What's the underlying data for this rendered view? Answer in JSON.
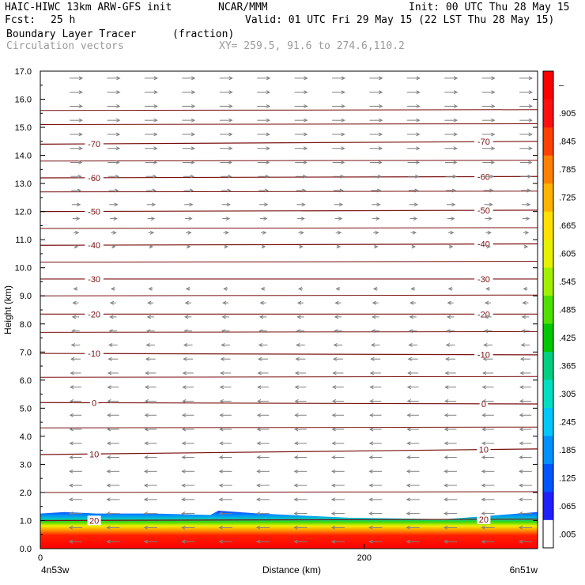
{
  "header": {
    "line1_left": "HAIC-HIWC 13km ARW-GFS init",
    "line1_mid": "NCAR/MMM",
    "line1_right": "Init: 00 UTC Thu 28 May 15",
    "fcst_label": "Fcst:",
    "fcst_value": "25 h",
    "valid": "Valid: 01 UTC Fri 29 May 15 (22 LST Thu 28 May 15)",
    "field_name": "Boundary Layer Tracer",
    "field_units": "(fraction)",
    "vectors_label": "Circulation vectors",
    "xy_label": "XY= 259.5, 91.6 to 274.6,110.2"
  },
  "chart_data": {
    "type": "heatmap",
    "ylabel": "Height (km)",
    "xlabel": "Distance (km)",
    "xlim": [
      0,
      307
    ],
    "ylim": [
      0,
      17
    ],
    "y_ticks": [
      "0.0",
      "1.0",
      "2.0",
      "3.0",
      "4.0",
      "5.0",
      "6.0",
      "7.0",
      "8.0",
      "9.0",
      "10.0",
      "11.0",
      "12.0",
      "13.0",
      "14.0",
      "15.0",
      "16.0",
      "17.0"
    ],
    "x_ticks": [
      {
        "value": 0,
        "label": "0"
      },
      {
        "value": 200,
        "label": "200"
      }
    ],
    "x_left_label": "4n53w",
    "x_right_label": "6n51w",
    "colorbar_labels": [
      ".005",
      ".065",
      ".125",
      ".185",
      ".245",
      ".305",
      ".365",
      ".425",
      ".485",
      ".545",
      ".605",
      ".665",
      ".725",
      ".785",
      ".845",
      ".905",
      "–"
    ],
    "colorbar_colors": [
      "#ffffff",
      "#2020ff",
      "#0055ff",
      "#0090ff",
      "#00c8ff",
      "#00e0c0",
      "#00d080",
      "#00c800",
      "#50e000",
      "#a0f000",
      "#e6f000",
      "#ffe000",
      "#ffb400",
      "#ff8000",
      "#ff4000",
      "#ff1010",
      "#ff0000"
    ],
    "tracer_top_km": [
      {
        "x": 0,
        "top": 1.25
      },
      {
        "x": 15,
        "top": 1.3
      },
      {
        "x": 35,
        "top": 1.25
      },
      {
        "x": 70,
        "top": 1.25
      },
      {
        "x": 105,
        "top": 1.2
      },
      {
        "x": 110,
        "top": 1.35
      },
      {
        "x": 135,
        "top": 1.25
      },
      {
        "x": 190,
        "top": 1.1
      },
      {
        "x": 250,
        "top": 1.05
      },
      {
        "x": 307,
        "top": 1.3
      }
    ],
    "isotherms": [
      {
        "label": "-70",
        "left_km": 14.4,
        "right_km": 14.5
      },
      {
        "label": "-60",
        "left_km": 13.2,
        "right_km": 13.25
      },
      {
        "label": "-50",
        "left_km": 12.0,
        "right_km": 12.05
      },
      {
        "label": "-40",
        "left_km": 10.8,
        "right_km": 10.85
      },
      {
        "label": "-30",
        "left_km": 9.6,
        "right_km": 9.6
      },
      {
        "label": "-20",
        "left_km": 8.35,
        "right_km": 8.35
      },
      {
        "label": "-10",
        "left_km": 6.95,
        "right_km": 6.9
      },
      {
        "label": "0",
        "left_km": 5.2,
        "right_km": 5.15
      },
      {
        "label": "10",
        "left_km": 3.35,
        "right_km": 3.55
      },
      {
        "label": "20",
        "left_km": 1.0,
        "right_km": 1.05
      }
    ],
    "extra_contours_km": [
      15.6,
      15.1,
      13.8,
      12.7,
      11.4,
      10.2,
      9.0,
      7.7,
      6.1,
      4.3,
      2.0
    ],
    "wind_profile": [
      {
        "z": 0.2,
        "u": -1.0
      },
      {
        "z": 2.0,
        "u": -1.0
      },
      {
        "z": 6.0,
        "u": -0.85
      },
      {
        "z": 9.0,
        "u": -0.4
      },
      {
        "z": 10.5,
        "u": 0.2
      },
      {
        "z": 12.0,
        "u": 0.6
      },
      {
        "z": 14.0,
        "u": 0.95
      },
      {
        "z": 16.8,
        "u": 1.0
      }
    ]
  }
}
